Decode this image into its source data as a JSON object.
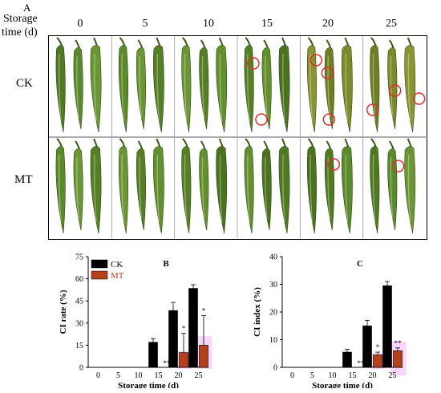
{
  "figure": {
    "panel_a_letter": "A",
    "storage_label_line1": "Storage",
    "storage_label_line2": "time (d)",
    "days": [
      "0",
      "5",
      "10",
      "15",
      "20",
      "25"
    ],
    "rows": [
      "CK",
      "MT"
    ],
    "chilling_injury_marked": [
      {
        "row": "CK",
        "day": "15",
        "marks": 2
      },
      {
        "row": "CK",
        "day": "20",
        "marks": 3
      },
      {
        "row": "CK",
        "day": "25",
        "marks": 3
      },
      {
        "row": "MT",
        "day": "20",
        "marks": 1
      },
      {
        "row": "MT",
        "day": "25",
        "marks": 1
      }
    ],
    "colors": {
      "ck_bar": "#000000",
      "mt_bar": "#b5401c",
      "highlight": "#f08cf0",
      "ci_circle": "#e0302a",
      "pepper": "#5e8a2a"
    }
  },
  "chart_data": [
    {
      "type": "bar",
      "panel": "B",
      "categories": [
        "0",
        "5",
        "10",
        "15",
        "20",
        "25"
      ],
      "series": [
        {
          "name": "CK",
          "values": [
            0,
            0,
            0,
            17,
            38.5,
            53.5
          ],
          "errors": [
            0,
            0,
            0,
            2.5,
            5.5,
            2.5
          ],
          "significance": [
            "",
            "",
            "",
            "",
            "",
            ""
          ]
        },
        {
          "name": "MT",
          "values": [
            0,
            0,
            0,
            0,
            10,
            15
          ],
          "errors": [
            0,
            0,
            0,
            0,
            13,
            20
          ],
          "significance": [
            "",
            "",
            "",
            "**",
            "*",
            "*"
          ]
        }
      ],
      "xlabel": "Storage time (d)",
      "ylabel": "CI rate (%)",
      "ylim": [
        0,
        75
      ],
      "yticks": [
        "0",
        "15",
        "30",
        "45",
        "60",
        "75"
      ],
      "legend": "top-left"
    },
    {
      "type": "bar",
      "panel": "C",
      "categories": [
        "0",
        "5",
        "10",
        "15",
        "20",
        "25"
      ],
      "series": [
        {
          "name": "CK",
          "values": [
            0,
            0,
            0,
            5.5,
            15,
            29.5
          ],
          "errors": [
            0,
            0,
            0,
            1,
            2,
            1.5
          ],
          "significance": [
            "",
            "",
            "",
            "",
            "",
            ""
          ]
        },
        {
          "name": "MT",
          "values": [
            0,
            0,
            0,
            0,
            4.5,
            6
          ],
          "errors": [
            0,
            0,
            0,
            0,
            1,
            1
          ],
          "significance": [
            "",
            "",
            "",
            "**",
            "*",
            "**"
          ]
        }
      ],
      "xlabel": "Storage time (d)",
      "ylabel": "CI index (%)",
      "ylim": [
        0,
        40
      ],
      "yticks": [
        "0",
        "10",
        "20",
        "30",
        "40"
      ],
      "legend": "none"
    }
  ]
}
